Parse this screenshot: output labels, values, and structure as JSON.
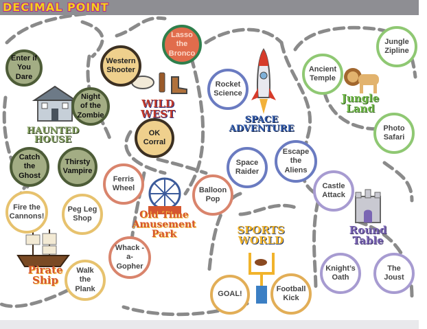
{
  "app": {
    "logo_text": "DECIMAL POINT"
  },
  "lands": {
    "haunted": {
      "title": "HAUNTED HOUSE",
      "color": "#7f9b5b"
    },
    "wild": {
      "title": "WILD WEST",
      "color": "#c0392b"
    },
    "space": {
      "title": "SPACE ADVENTURE",
      "color": "#2e57a8"
    },
    "jungle": {
      "title": "Jungle Land",
      "color": "#71b84a"
    },
    "round": {
      "title": "Round Table",
      "color": "#7a65b3"
    },
    "sports": {
      "title": "SPORTS WORLD",
      "color": "#f1b32b"
    },
    "amuse": {
      "title": "Old Time Amusement Park",
      "color": "#d5562f"
    },
    "pirate": {
      "title": "Pirate Ship",
      "color": "#d5562f"
    }
  },
  "nodes": {
    "enter_if_you_dare": "Enter if You Dare",
    "night_of_the_zombie": "Night of the Zombie",
    "catch_the_ghost": "Catch the Ghost",
    "thirsty_vampire": "Thirsty Vampire",
    "western_shooter": "Western Shooter",
    "lasso_the_bronco": "Lasso the Bronco",
    "ok_corral": "OK Corral",
    "rocket_science": "Rocket Science",
    "space_raider": "Space Raider",
    "escape_the_aliens": "Escape the Aliens",
    "ancient_temple": "Ancient Temple",
    "jungle_zipline": "Jungle Zipline",
    "photo_safari": "Photo Safari",
    "castle_attack": "Castle Attack",
    "knights_oath": "Knight’s Oath",
    "the_joust": "The Joust",
    "ferris_wheel": "Ferris Wheel",
    "balloon_pop": "Balloon Pop",
    "whack_a_gopher": "Whack -a- Gopher",
    "goal": "GOAL!",
    "football_kick": "Football Kick",
    "fire_the_cannons": "Fire the Cannons!",
    "peg_leg_shop": "Peg Leg Shop",
    "walk_the_plank": "Walk the Plank"
  }
}
